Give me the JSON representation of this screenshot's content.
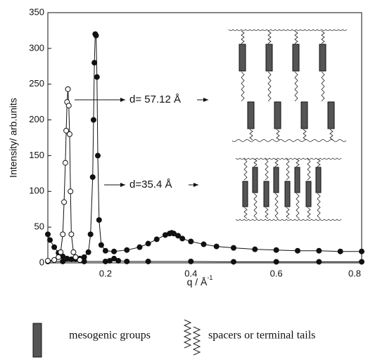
{
  "chart_data": {
    "type": "line",
    "x_label": "q / Å",
    "x_label_sup": "-1",
    "y_label": "Intensity/ arb.units",
    "xlim": [
      0.065,
      0.8
    ],
    "xticks": [
      0.2,
      0.4,
      0.6,
      0.8
    ],
    "ylim": [
      0,
      350
    ],
    "yticks": [
      0,
      50,
      100,
      150,
      200,
      250,
      300,
      350
    ],
    "series": [
      {
        "color": "#111111",
        "marker": "filled",
        "x": [
          0.065,
          0.07,
          0.08,
          0.09,
          0.1,
          0.11,
          0.12,
          0.13,
          0.14,
          0.15,
          0.16,
          0.165,
          0.17,
          0.172,
          0.174,
          0.176,
          0.178,
          0.18,
          0.182,
          0.185,
          0.19,
          0.2,
          0.22,
          0.25,
          0.28,
          0.3,
          0.32,
          0.34,
          0.35,
          0.355,
          0.36,
          0.37,
          0.38,
          0.4,
          0.43,
          0.46,
          0.5,
          0.55,
          0.6,
          0.65,
          0.7,
          0.75,
          0.8
        ],
        "values": [
          40,
          32,
          22,
          14,
          9,
          6,
          5,
          5,
          6,
          8,
          15,
          40,
          120,
          200,
          280,
          320,
          318,
          260,
          150,
          60,
          25,
          17,
          16,
          18,
          22,
          27,
          33,
          39,
          41,
          42,
          41,
          38,
          34,
          30,
          26,
          23,
          21,
          19,
          18,
          17,
          17,
          16,
          16
        ]
      },
      {
        "color": "#111111",
        "marker": "filled",
        "x": [
          0.065,
          0.1,
          0.15,
          0.2,
          0.21,
          0.22,
          0.23,
          0.25,
          0.3,
          0.4,
          0.5,
          0.6,
          0.7,
          0.8
        ],
        "values": [
          2,
          2,
          2,
          2,
          3,
          6,
          3,
          2,
          2,
          2,
          1.5,
          1.5,
          1.5,
          1.5
        ]
      },
      {
        "color": "#111111",
        "marker": "open",
        "x": [
          0.065,
          0.08,
          0.09,
          0.095,
          0.1,
          0.103,
          0.106,
          0.108,
          0.11,
          0.112,
          0.114,
          0.116,
          0.118,
          0.12,
          0.125,
          0.13,
          0.14
        ],
        "values": [
          3,
          4,
          8,
          15,
          40,
          85,
          140,
          185,
          225,
          243,
          220,
          180,
          100,
          40,
          15,
          8,
          4
        ]
      }
    ],
    "annotations": [
      "d= 57.12 Å",
      "d=35.4 Å"
    ],
    "schematic_legend": [
      "mesogenic groups",
      "spacers or terminal tails"
    ]
  }
}
